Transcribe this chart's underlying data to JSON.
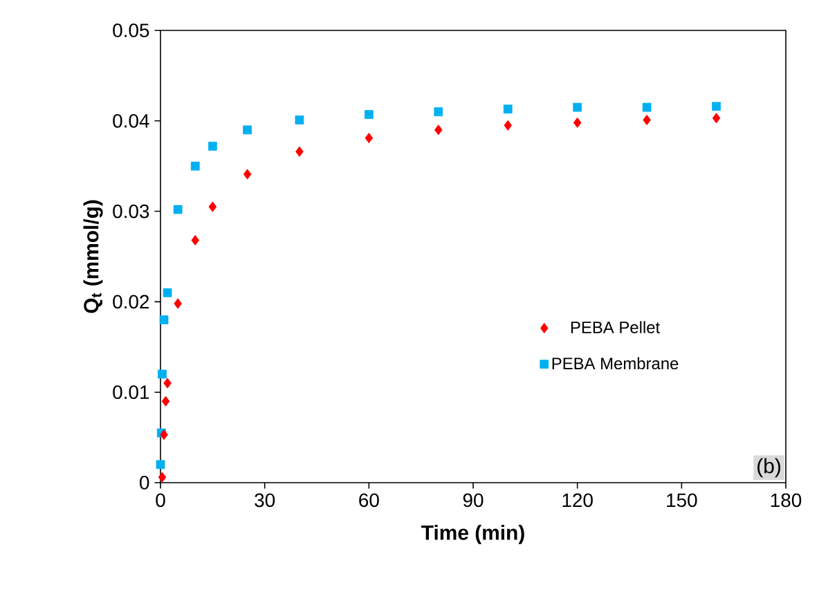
{
  "chart_data": {
    "type": "scatter",
    "xlabel": "Time (min)",
    "ylabel": "Q$_{t}$ (mmol/g)",
    "series": [
      {
        "name": "PEBA Pellet",
        "color": "#ff0000",
        "marker": "diamond",
        "x": [
          0.5,
          1,
          1.5,
          2,
          5,
          10,
          15,
          25,
          40,
          60,
          80,
          100,
          120,
          140,
          160
        ],
        "values": [
          0.0006,
          0.0053,
          0.009,
          0.011,
          0.0198,
          0.0268,
          0.0305,
          0.0341,
          0.0366,
          0.0381,
          0.039,
          0.0395,
          0.0398,
          0.0401,
          0.0403
        ]
      },
      {
        "name": "PEBA Membrane",
        "color": "#00b0f0",
        "marker": "square",
        "x": [
          0,
          0.25,
          0.5,
          1,
          2,
          5,
          10,
          15,
          25,
          40,
          60,
          80,
          100,
          120,
          140,
          160
        ],
        "values": [
          0.002,
          0.0055,
          0.012,
          0.018,
          0.021,
          0.0302,
          0.035,
          0.0372,
          0.039,
          0.0401,
          0.0407,
          0.041,
          0.0413,
          0.0415,
          0.0415,
          0.0416
        ]
      }
    ],
    "xlim": [
      0,
      180
    ],
    "xticks": [
      0,
      30,
      60,
      90,
      120,
      150,
      180
    ],
    "ylim": [
      0,
      0.05
    ],
    "yticks": [
      0,
      0.01,
      0.02,
      0.03,
      0.04,
      0.05
    ],
    "grid": false,
    "legend": "right",
    "annotations": [
      "(b)"
    ]
  }
}
